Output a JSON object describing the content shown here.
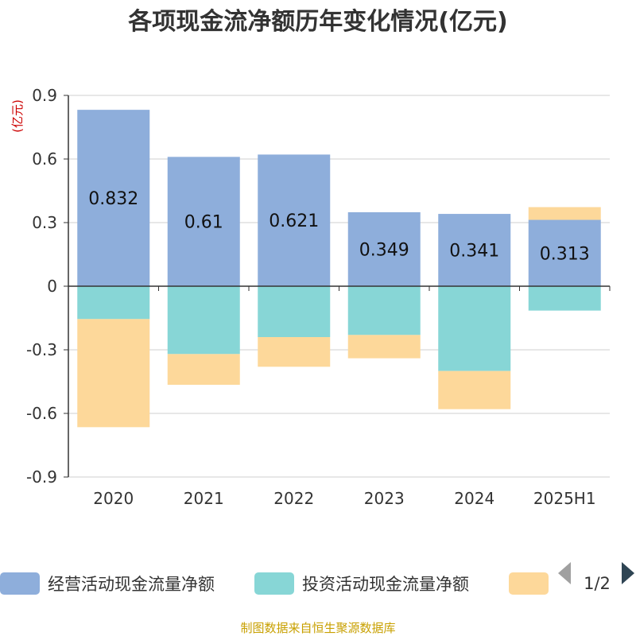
{
  "chart_data": {
    "type": "bar",
    "stacked": true,
    "title": "各项现金流净额历年变化情况(亿元)",
    "ylabel": "(亿元)",
    "categories": [
      "2020",
      "2021",
      "2022",
      "2023",
      "2024",
      "2025H1"
    ],
    "ylim": [
      -0.9,
      0.9
    ],
    "yticks": [
      "0.9",
      "0.6",
      "0.3",
      "0",
      "-0.3",
      "-0.6",
      "-0.9"
    ],
    "yticks_values": [
      0.9,
      0.6,
      0.3,
      0,
      -0.3,
      -0.6,
      -0.9
    ],
    "series": [
      {
        "name": "经营活动现金流量净额",
        "color": "#8eaedb",
        "values": [
          0.832,
          0.61,
          0.621,
          0.349,
          0.341,
          0.313
        ],
        "labels": [
          "0.832",
          "0.61",
          "0.621",
          "0.349",
          "0.341",
          "0.313"
        ]
      },
      {
        "name": "投资活动现金流量净额",
        "color": "#87d6d6",
        "values": [
          -0.155,
          -0.32,
          -0.24,
          -0.23,
          -0.4,
          -0.115
        ]
      },
      {
        "name": "",
        "color": "#fdd89a",
        "values": [
          -0.51,
          -0.145,
          -0.14,
          -0.11,
          -0.18,
          0.06
        ]
      }
    ],
    "legend_pager": "1/2",
    "source": "制图数据来自恒生聚源数据库"
  }
}
